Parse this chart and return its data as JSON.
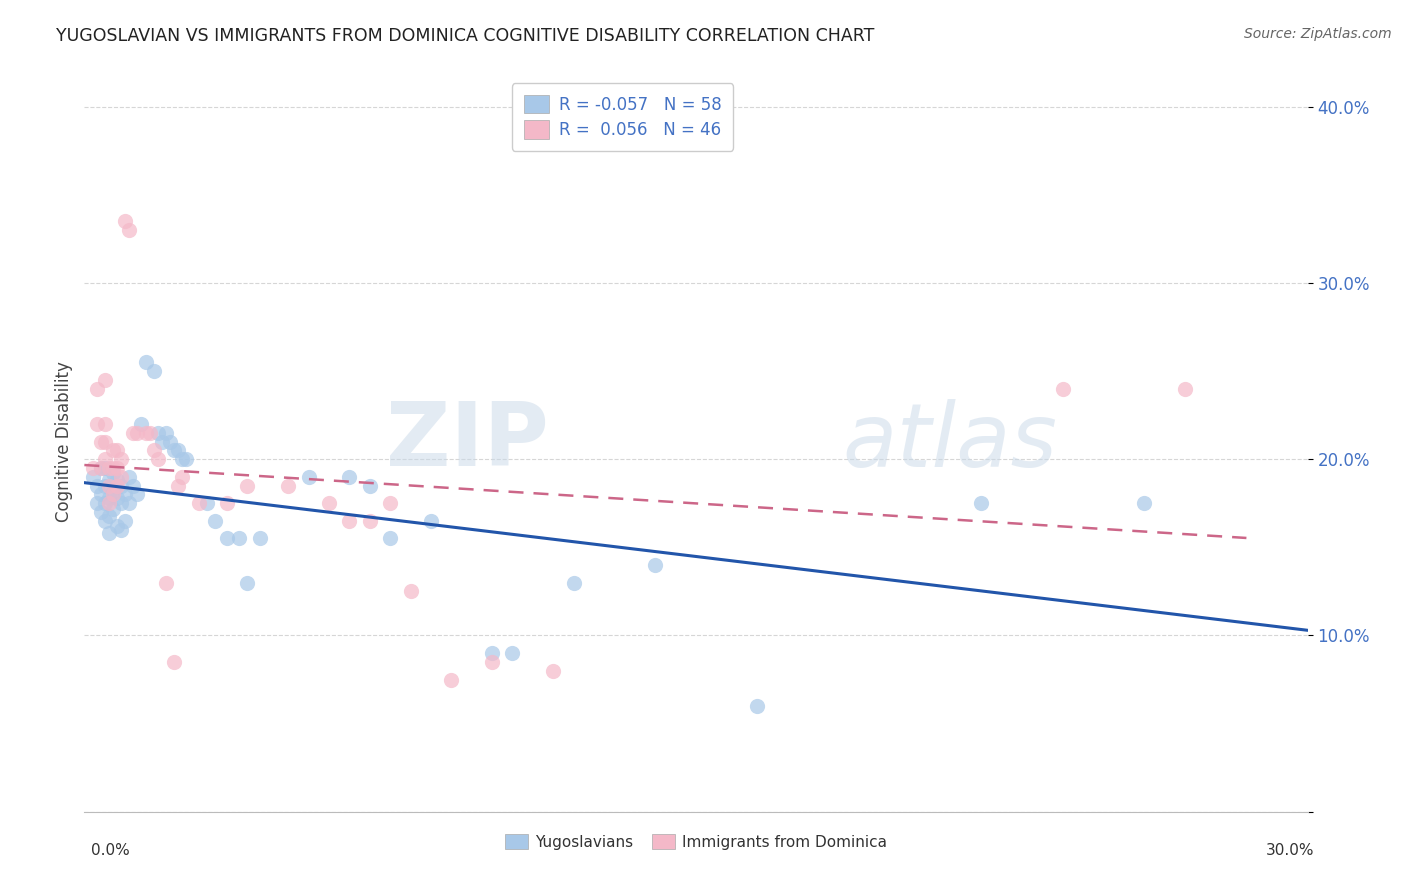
{
  "title": "YUGOSLAVIAN VS IMMIGRANTS FROM DOMINICA COGNITIVE DISABILITY CORRELATION CHART",
  "source": "Source: ZipAtlas.com",
  "ylabel": "Cognitive Disability",
  "xlim": [
    0.0,
    0.3
  ],
  "ylim": [
    0.0,
    0.42
  ],
  "blue_color": "#a8c8e8",
  "pink_color": "#f4b8c8",
  "blue_line_color": "#2255aa",
  "pink_line_color": "#cc6688",
  "blue_scatter": [
    [
      0.002,
      0.19
    ],
    [
      0.003,
      0.185
    ],
    [
      0.003,
      0.175
    ],
    [
      0.004,
      0.195
    ],
    [
      0.004,
      0.18
    ],
    [
      0.004,
      0.17
    ],
    [
      0.005,
      0.195
    ],
    [
      0.005,
      0.185
    ],
    [
      0.005,
      0.175
    ],
    [
      0.005,
      0.165
    ],
    [
      0.006,
      0.188
    ],
    [
      0.006,
      0.178
    ],
    [
      0.006,
      0.168
    ],
    [
      0.006,
      0.158
    ],
    [
      0.007,
      0.192
    ],
    [
      0.007,
      0.182
    ],
    [
      0.007,
      0.172
    ],
    [
      0.008,
      0.188
    ],
    [
      0.008,
      0.178
    ],
    [
      0.008,
      0.162
    ],
    [
      0.009,
      0.185
    ],
    [
      0.009,
      0.175
    ],
    [
      0.009,
      0.16
    ],
    [
      0.01,
      0.18
    ],
    [
      0.01,
      0.165
    ],
    [
      0.011,
      0.19
    ],
    [
      0.011,
      0.175
    ],
    [
      0.012,
      0.185
    ],
    [
      0.013,
      0.18
    ],
    [
      0.014,
      0.22
    ],
    [
      0.015,
      0.255
    ],
    [
      0.017,
      0.25
    ],
    [
      0.018,
      0.215
    ],
    [
      0.019,
      0.21
    ],
    [
      0.02,
      0.215
    ],
    [
      0.021,
      0.21
    ],
    [
      0.022,
      0.205
    ],
    [
      0.023,
      0.205
    ],
    [
      0.024,
      0.2
    ],
    [
      0.025,
      0.2
    ],
    [
      0.03,
      0.175
    ],
    [
      0.032,
      0.165
    ],
    [
      0.035,
      0.155
    ],
    [
      0.038,
      0.155
    ],
    [
      0.04,
      0.13
    ],
    [
      0.043,
      0.155
    ],
    [
      0.055,
      0.19
    ],
    [
      0.065,
      0.19
    ],
    [
      0.07,
      0.185
    ],
    [
      0.075,
      0.155
    ],
    [
      0.085,
      0.165
    ],
    [
      0.1,
      0.09
    ],
    [
      0.105,
      0.09
    ],
    [
      0.12,
      0.13
    ],
    [
      0.14,
      0.14
    ],
    [
      0.165,
      0.06
    ],
    [
      0.22,
      0.175
    ],
    [
      0.26,
      0.175
    ]
  ],
  "pink_scatter": [
    [
      0.002,
      0.195
    ],
    [
      0.003,
      0.24
    ],
    [
      0.003,
      0.22
    ],
    [
      0.004,
      0.21
    ],
    [
      0.004,
      0.195
    ],
    [
      0.005,
      0.245
    ],
    [
      0.005,
      0.22
    ],
    [
      0.005,
      0.21
    ],
    [
      0.005,
      0.2
    ],
    [
      0.006,
      0.195
    ],
    [
      0.006,
      0.185
    ],
    [
      0.006,
      0.175
    ],
    [
      0.007,
      0.205
    ],
    [
      0.007,
      0.195
    ],
    [
      0.007,
      0.18
    ],
    [
      0.008,
      0.205
    ],
    [
      0.008,
      0.195
    ],
    [
      0.008,
      0.185
    ],
    [
      0.009,
      0.2
    ],
    [
      0.009,
      0.19
    ],
    [
      0.01,
      0.335
    ],
    [
      0.011,
      0.33
    ],
    [
      0.012,
      0.215
    ],
    [
      0.013,
      0.215
    ],
    [
      0.015,
      0.215
    ],
    [
      0.016,
      0.215
    ],
    [
      0.017,
      0.205
    ],
    [
      0.018,
      0.2
    ],
    [
      0.02,
      0.13
    ],
    [
      0.022,
      0.085
    ],
    [
      0.023,
      0.185
    ],
    [
      0.024,
      0.19
    ],
    [
      0.028,
      0.175
    ],
    [
      0.035,
      0.175
    ],
    [
      0.04,
      0.185
    ],
    [
      0.05,
      0.185
    ],
    [
      0.06,
      0.175
    ],
    [
      0.065,
      0.165
    ],
    [
      0.07,
      0.165
    ],
    [
      0.075,
      0.175
    ],
    [
      0.08,
      0.125
    ],
    [
      0.09,
      0.075
    ],
    [
      0.1,
      0.085
    ],
    [
      0.115,
      0.08
    ],
    [
      0.24,
      0.24
    ],
    [
      0.27,
      0.24
    ]
  ],
  "watermark_text": "ZIP",
  "watermark_text2": "atlas",
  "background_color": "#ffffff",
  "grid_color": "#cccccc",
  "legend_label1": "R = -0.057   N = 58",
  "legend_label2": "R =  0.056   N = 46",
  "legend_xlabel": "Yugoslavians",
  "legend_xlabel2": "Immigrants from Dominica"
}
